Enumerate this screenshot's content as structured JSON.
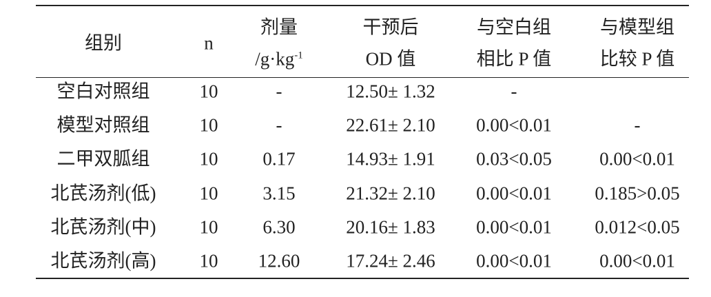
{
  "table": {
    "headers": [
      {
        "lines": [
          "组别"
        ]
      },
      {
        "lines": [
          "n"
        ]
      },
      {
        "lines": [
          "剂量",
          "/g·kg"
        ],
        "superscript": "-1"
      },
      {
        "lines": [
          "干预后",
          "OD 值"
        ]
      },
      {
        "lines": [
          "与空白组",
          "相比 P 值"
        ]
      },
      {
        "lines": [
          "与模型组",
          "比较 P 值"
        ]
      }
    ],
    "rows": [
      [
        "空白对照组",
        "10",
        "-",
        "12.50± 1.32",
        "-",
        null
      ],
      [
        "模型对照组",
        "10",
        "-",
        "22.61± 2.10",
        "0.00<0.01",
        "-"
      ],
      [
        "二甲双胍组",
        "10",
        "0.17",
        "14.93± 1.91",
        "0.03<0.05",
        "0.00<0.01"
      ],
      [
        "北芪汤剂(低)",
        "10",
        "3.15",
        "21.32± 2.10",
        "0.00<0.01",
        "0.185>0.05"
      ],
      [
        "北芪汤剂(中)",
        "10",
        "6.30",
        "20.16± 1.83",
        "0.00<0.01",
        "0.012<0.05"
      ],
      [
        "北芪汤剂(高)",
        "10",
        "12.60",
        "17.24± 2.46",
        "0.00<0.01",
        "0.00<0.01"
      ]
    ]
  }
}
